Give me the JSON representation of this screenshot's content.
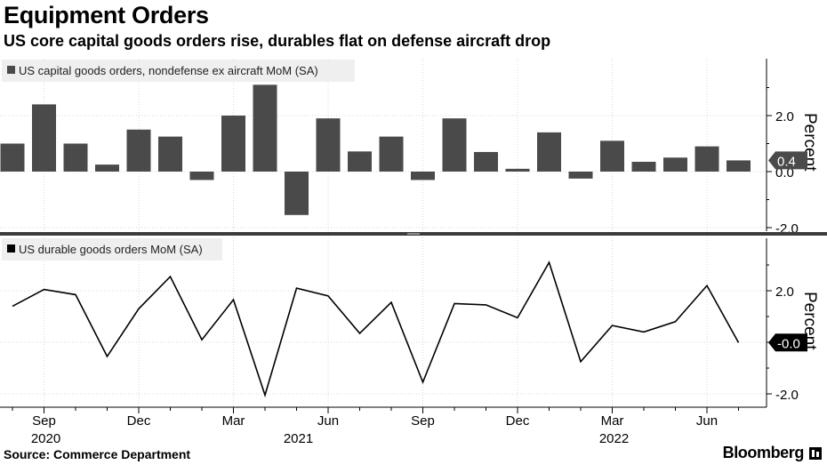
{
  "title": "Equipment Orders",
  "subtitle": "US core capital goods orders rise, durables flat on defense aircraft drop",
  "source": "Source: Commerce Department",
  "brand": "Bloomberg",
  "colors": {
    "bar": "#4a4a4a",
    "line": "#000000",
    "grid": "#d9d9d9",
    "divider": "#3c3c3c"
  },
  "chart_data": [
    {
      "type": "bar",
      "legend": "US capital goods orders, nondefense ex aircraft MoM (SA)",
      "ylabel": "Percent",
      "ylim": [
        -2.5,
        3.25
      ],
      "yticks": [
        -2.0,
        0.0,
        2.0
      ],
      "ytick_labels": [
        "-2.0",
        "0.0",
        "2.0"
      ],
      "last_value_label": "0.4",
      "x": [
        "2020-08",
        "2020-09",
        "2020-10",
        "2020-11",
        "2020-12",
        "2021-01",
        "2021-02",
        "2021-03",
        "2021-04",
        "2021-05",
        "2021-06",
        "2021-07",
        "2021-08",
        "2021-09",
        "2021-10",
        "2021-11",
        "2021-12",
        "2022-01",
        "2022-02",
        "2022-03",
        "2022-04",
        "2022-05",
        "2022-06",
        "2022-07"
      ],
      "values": [
        1.0,
        2.4,
        1.0,
        0.25,
        1.5,
        1.25,
        -0.3,
        2.0,
        3.1,
        -1.55,
        1.9,
        0.72,
        1.25,
        -0.3,
        1.9,
        0.7,
        0.1,
        1.4,
        -0.25,
        1.1,
        0.35,
        0.5,
        0.9,
        0.4
      ]
    },
    {
      "type": "line",
      "legend": "US durable goods orders MoM (SA)",
      "ylabel": "Percent",
      "ylim": [
        -2.4,
        3.3
      ],
      "yticks": [
        -2.0,
        0.0,
        2.0
      ],
      "ytick_labels": [
        "-2.0",
        "0.0",
        "2.0"
      ],
      "last_value_label": "-0.0",
      "x": [
        "2020-08",
        "2020-09",
        "2020-10",
        "2020-11",
        "2020-12",
        "2021-01",
        "2021-02",
        "2021-03",
        "2021-04",
        "2021-05",
        "2021-06",
        "2021-07",
        "2021-08",
        "2021-09",
        "2021-10",
        "2021-11",
        "2021-12",
        "2022-01",
        "2022-02",
        "2022-03",
        "2022-04",
        "2022-05",
        "2022-06",
        "2022-07"
      ],
      "values": [
        1.4,
        2.05,
        1.85,
        -0.55,
        1.3,
        2.55,
        0.1,
        1.65,
        -2.05,
        2.1,
        1.8,
        0.35,
        1.55,
        -1.55,
        1.5,
        1.45,
        0.95,
        3.1,
        -0.75,
        0.65,
        0.4,
        0.8,
        2.2,
        -0.01
      ]
    }
  ],
  "x_axis": {
    "month_ticks": [
      "Sep",
      "Dec",
      "Mar",
      "Jun",
      "Sep",
      "Dec",
      "Mar",
      "Jun"
    ],
    "month_tick_dates": [
      "2020-09",
      "2020-12",
      "2021-03",
      "2021-06",
      "2021-09",
      "2021-12",
      "2022-03",
      "2022-06"
    ],
    "year_labels": [
      "2020",
      "2021",
      "2022"
    ],
    "year_label_dates": [
      "2020-09",
      "2021-05",
      "2022-03"
    ]
  }
}
